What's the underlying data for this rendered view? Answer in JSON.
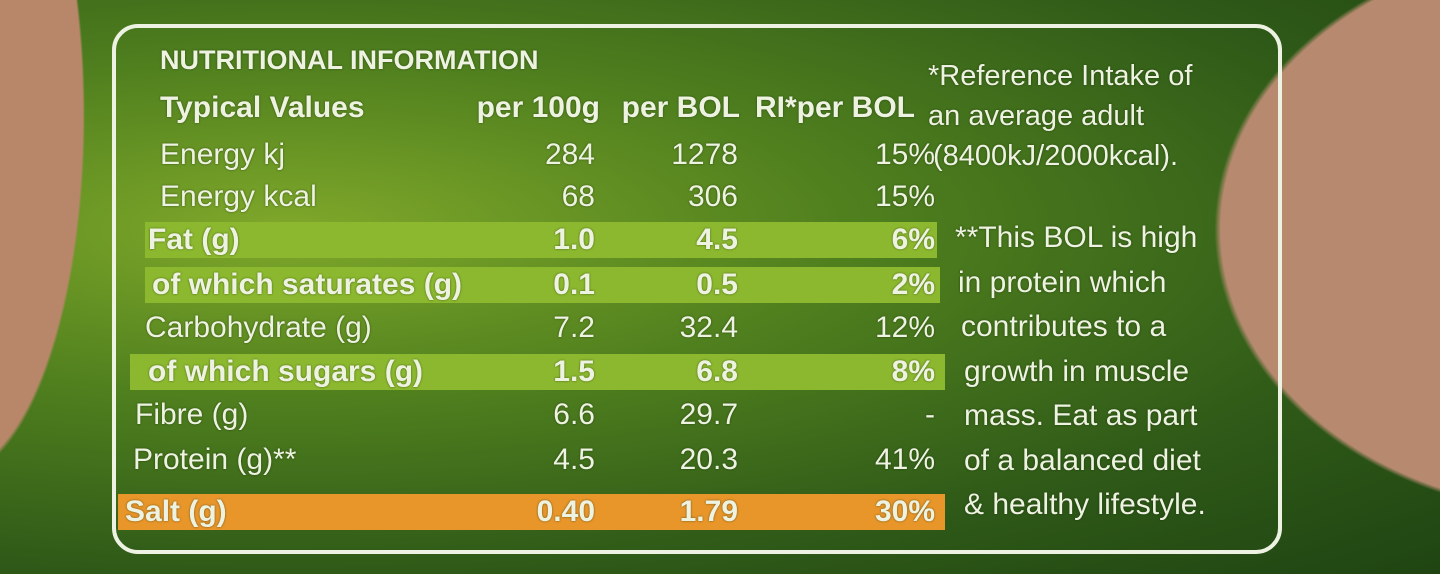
{
  "label": {
    "title": "NUTRITIONAL INFORMATION",
    "header": [
      "Typical Values",
      "per 100g",
      "per BOL",
      "RI*per BOL"
    ],
    "rows": [
      [
        "Energy kj",
        "284",
        "1278",
        "15%"
      ],
      [
        "Energy kcal",
        "68",
        "306",
        "15%"
      ],
      [
        "Fat (g)",
        "1.0",
        "4.5",
        "6%"
      ],
      [
        "of which saturates (g)",
        "0.1",
        "0.5",
        "2%"
      ],
      [
        "Carbohydrate (g)",
        "7.2",
        "32.4",
        "12%"
      ],
      [
        "of which sugars (g)",
        "1.5",
        "6.8",
        "8%"
      ],
      [
        "Fibre (g)",
        "6.6",
        "29.7",
        "-"
      ],
      [
        "Protein (g)**",
        "4.5",
        "20.3",
        "41%"
      ],
      [
        "Salt (g)",
        "0.40",
        "1.79",
        "30%"
      ]
    ],
    "reference_note": [
      "*Reference Intake of",
      "an average adult",
      "(8400kJ/2000kcal)."
    ],
    "protein_note": [
      "**This BOL is high",
      "in protein which",
      "contributes to a",
      "growth in muscle",
      "mass. Eat as part",
      "of a balanced diet",
      "& healthy lifestyle."
    ]
  }
}
